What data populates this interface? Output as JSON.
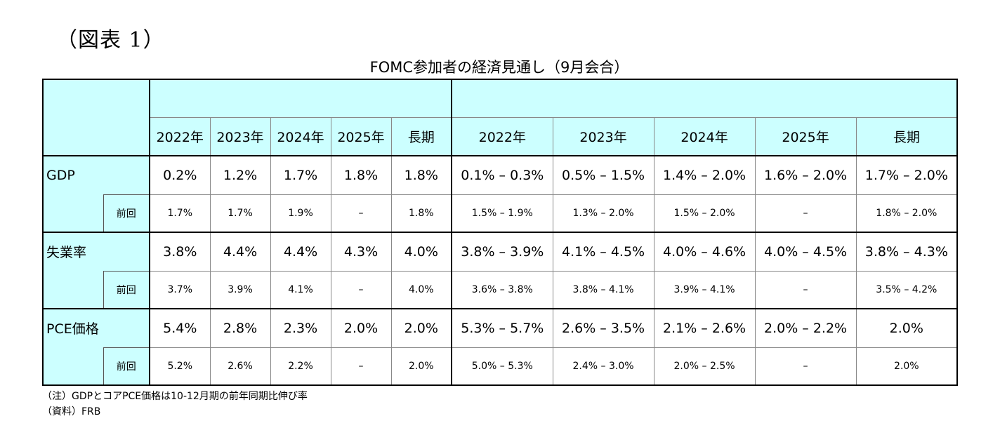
{
  "figure_label": "（図表 1）",
  "title": "FOMC参加者の経済見通し（9月会合）",
  "year_headers": [
    "2022年",
    "2023年",
    "2024年",
    "2025年",
    "長期"
  ],
  "range_headers": [
    "2022年",
    "2023年",
    "2024年",
    "2025年",
    "長期"
  ],
  "rows": [
    {
      "label": "GDP",
      "median": [
        "0.2%",
        "1.2%",
        "1.7%",
        "1.8%",
        "1.8%"
      ],
      "range": [
        "0.1% – 0.3%",
        "0.5% – 1.5%",
        "1.4% – 2.0%",
        "1.6% – 2.0%",
        "1.7% – 2.0%"
      ],
      "prev_label": "前回",
      "prev_median": [
        "1.7%",
        "1.7%",
        "1.9%",
        "–",
        "1.8%"
      ],
      "prev_range": [
        "1.5% – 1.9%",
        "1.3% – 2.0%",
        "1.5% – 2.0%",
        "–",
        "1.8% – 2.0%"
      ]
    },
    {
      "label": "失業率",
      "median": [
        "3.8%",
        "4.4%",
        "4.4%",
        "4.3%",
        "4.0%"
      ],
      "range": [
        "3.8% – 3.9%",
        "4.1% – 4.5%",
        "4.0% – 4.6%",
        "4.0% – 4.5%",
        "3.8% – 4.3%"
      ],
      "prev_label": "前回",
      "prev_median": [
        "3.7%",
        "3.9%",
        "4.1%",
        "–",
        "4.0%"
      ],
      "prev_range": [
        "3.6% – 3.8%",
        "3.8% – 4.1%",
        "3.9% – 4.1%",
        "–",
        "3.5% – 4.2%"
      ]
    },
    {
      "label": "PCE価格",
      "median": [
        "5.4%",
        "2.8%",
        "2.3%",
        "2.0%",
        "2.0%"
      ],
      "range": [
        "5.3% – 5.7%",
        "2.6% – 3.5%",
        "2.1% – 2.6%",
        "2.0% – 2.2%",
        "2.0%"
      ],
      "prev_label": "前回",
      "prev_median": [
        "5.2%",
        "2.6%",
        "2.2%",
        "–",
        "2.0%"
      ],
      "prev_range": [
        "5.0% – 5.3%",
        "2.4% – 3.0%",
        "2.0% – 2.5%",
        "–",
        "2.0%"
      ]
    }
  ],
  "footnotes": [
    "（注）GDPとコアPCE価格は10-12月期の前年同期比伸び率",
    "（資料）FRB"
  ]
}
